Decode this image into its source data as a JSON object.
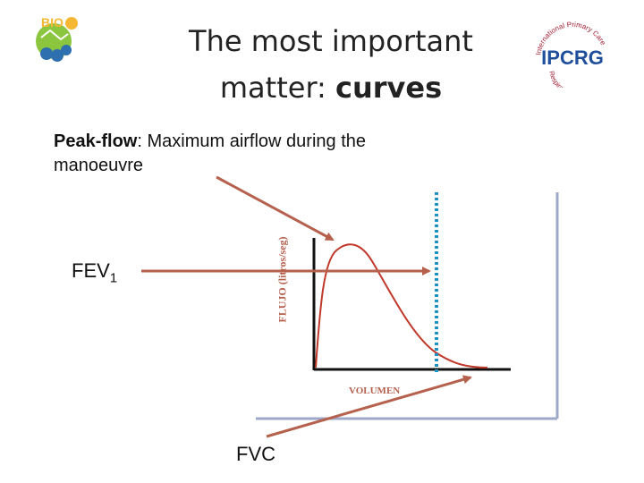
{
  "title": {
    "line1": "The most important",
    "line2_normal": "matter: ",
    "line2_bold": "curves"
  },
  "peak_flow": {
    "term": "Peak-flow",
    "description": ": Maximum airflow during the manoeuvre"
  },
  "fev": {
    "label": "FEV",
    "subscript": "1"
  },
  "fvc": {
    "label": "FVC"
  },
  "graph": {
    "y_axis_label": "FLUJO (litros/seg)",
    "x_axis_label": "VOLUMEN"
  },
  "logos": {
    "left": {
      "text": "BIO"
    },
    "right": {
      "name": "IPCRG",
      "arc_top": "International Primary Care",
      "arc_bottom": "Respiratory Group"
    }
  },
  "colors": {
    "arrow": "#b5614e",
    "curve": "#c0392b",
    "fvc_line": "#1e90c8",
    "axis": "#111111"
  }
}
